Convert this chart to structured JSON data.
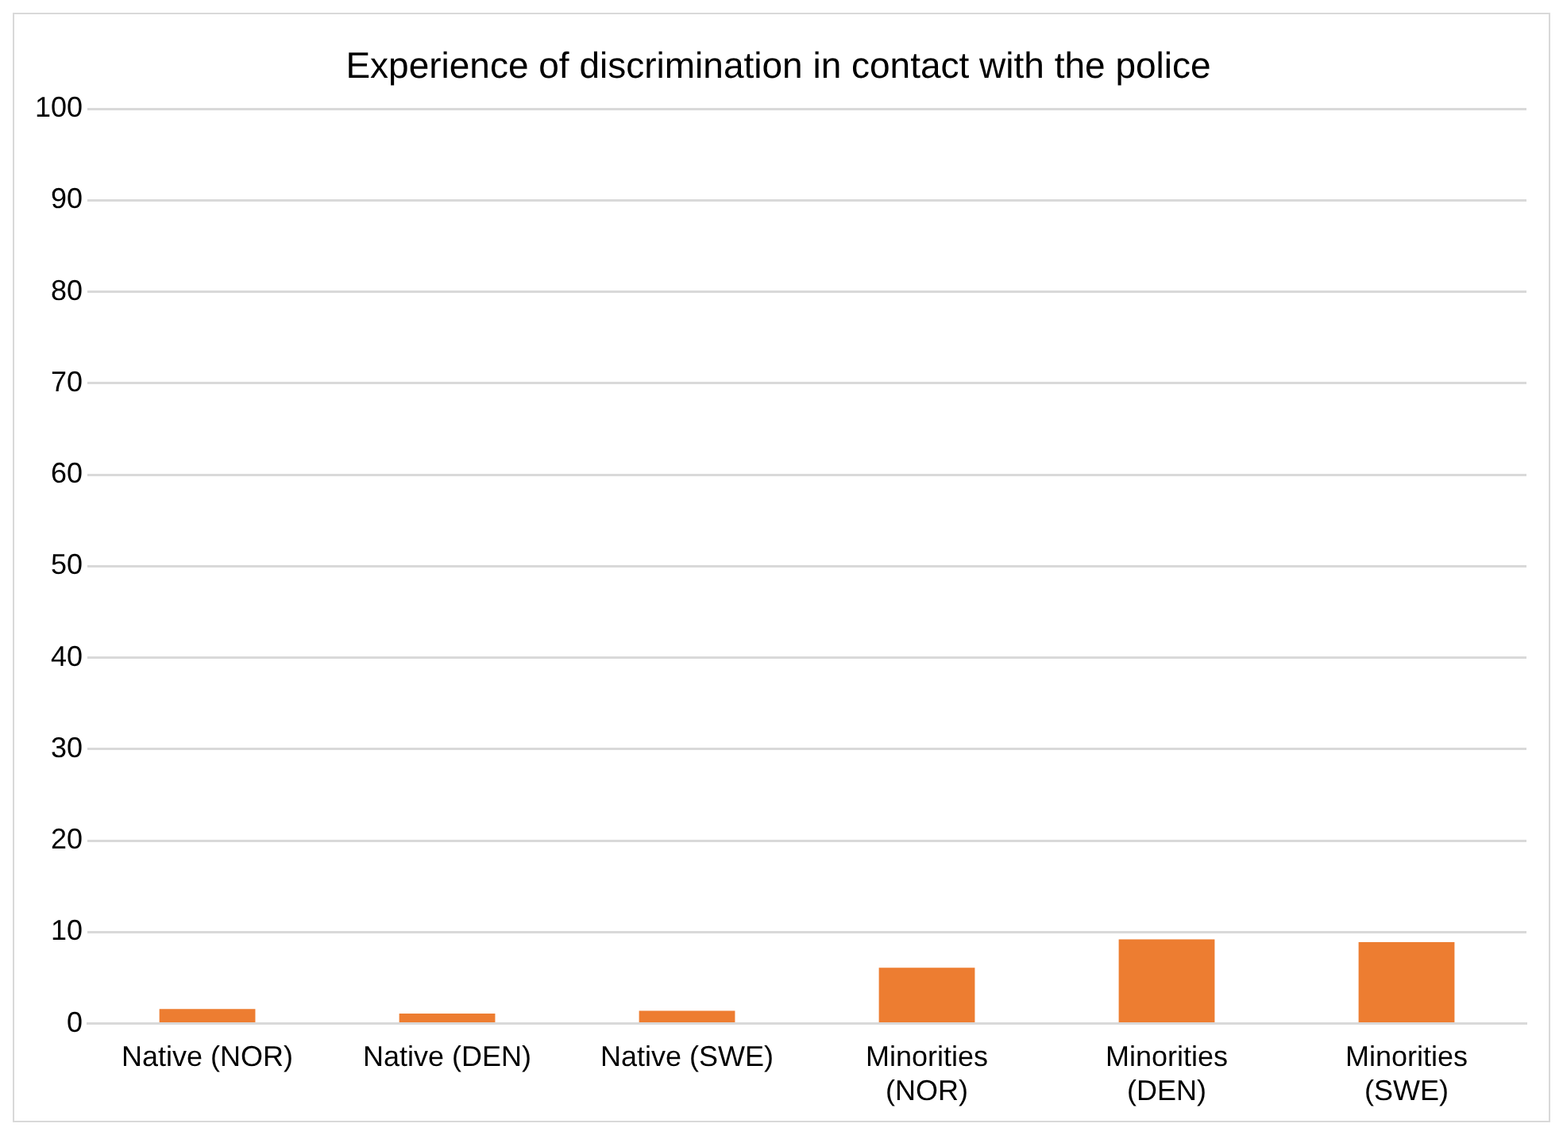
{
  "chart_data": {
    "type": "bar",
    "title": "Experience of discrimination in contact with the police",
    "categories": [
      "Native (NOR)",
      "Native (DEN)",
      "Native (SWE)",
      "Minorities (NOR)",
      "Minorities (DEN)",
      "Minorities (SWE)"
    ],
    "values": [
      1.6,
      1.1,
      1.4,
      6.1,
      9.2,
      8.9
    ],
    "color": "#ed7d31",
    "ylim": [
      0,
      100
    ],
    "yticks": [
      0,
      10,
      20,
      30,
      40,
      50,
      60,
      70,
      80,
      90,
      100
    ],
    "grid": "y",
    "legend": false
  }
}
